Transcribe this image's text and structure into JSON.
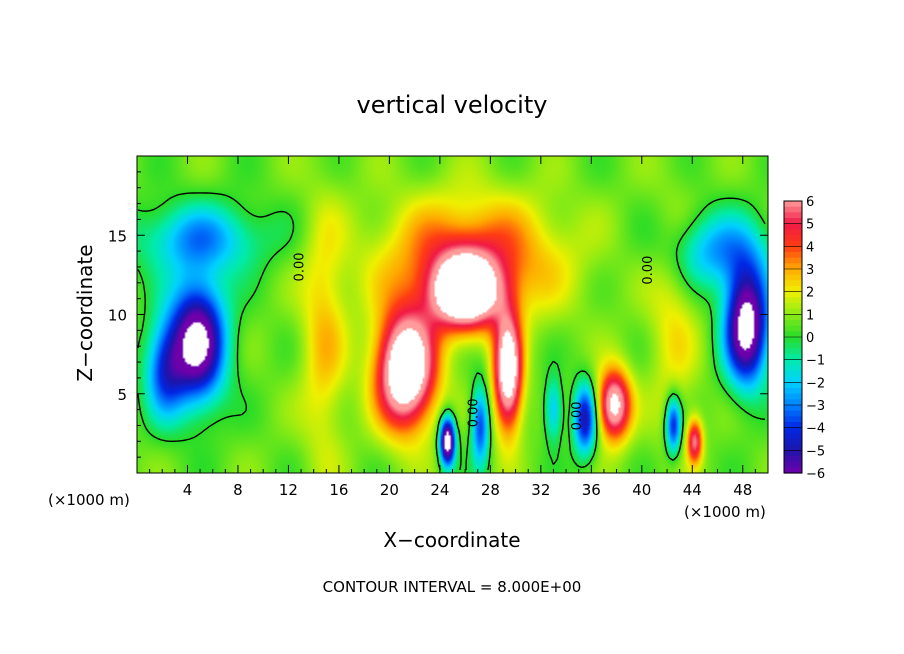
{
  "chart_data": {
    "type": "heatmap",
    "title": "vertical velocity",
    "xlabel": "X−coordinate",
    "ylabel": "Z−coordinate",
    "x_unit_label_left": "(×1000 m)",
    "x_unit_label_right": "(×1000 m)",
    "footer": "CONTOUR INTERVAL = 8.000E+00",
    "xlim": [
      0,
      50
    ],
    "ylim": [
      0,
      20
    ],
    "x_ticks": [
      4,
      8,
      12,
      16,
      20,
      24,
      28,
      32,
      36,
      40,
      44,
      48
    ],
    "y_ticks": [
      5,
      10,
      15
    ],
    "colorbar": {
      "min": -6,
      "max": 6,
      "ticks": [
        6,
        5,
        4,
        3,
        2,
        1,
        0,
        -1,
        -2,
        -3,
        -4,
        -5,
        -6
      ],
      "tick_labels": [
        "6",
        "5",
        "4",
        "3",
        "2",
        "1",
        "0",
        "−1",
        "−2",
        "−3",
        "−4",
        "−5",
        "−6"
      ]
    },
    "zero_contour_labels": [
      "0.00",
      "0.00",
      "0.00",
      "0.00"
    ],
    "features": [
      {
        "sign": "negative",
        "x": 4.8,
        "z": 8.3,
        "sx": 2.2,
        "sz": 3.8,
        "amp": -8.0
      },
      {
        "sign": "negative",
        "x": 2.2,
        "z": 6.5,
        "sx": 1.6,
        "sz": 3.0,
        "amp": -4.0
      },
      {
        "sign": "negative",
        "x": 5.0,
        "z": 14.8,
        "sx": 5.0,
        "sz": 2.2,
        "amp": -3.2
      },
      {
        "sign": "negative",
        "x": 48.3,
        "z": 9.3,
        "sx": 1.7,
        "sz": 3.6,
        "amp": -8.5
      },
      {
        "sign": "negative",
        "x": 46.0,
        "z": 14.0,
        "sx": 4.0,
        "sz": 2.4,
        "amp": -3.2
      },
      {
        "sign": "positive",
        "x": 21.3,
        "z": 6.5,
        "sx": 2.3,
        "sz": 3.6,
        "amp": 9.0
      },
      {
        "sign": "positive",
        "x": 26.0,
        "z": 11.4,
        "sx": 2.6,
        "sz": 2.2,
        "amp": 8.5
      },
      {
        "sign": "positive",
        "x": 29.4,
        "z": 6.3,
        "sx": 1.1,
        "sz": 3.6,
        "amp": 8.0
      },
      {
        "sign": "positive",
        "x": 26.5,
        "z": 13.5,
        "sx": 7.0,
        "sz": 3.8,
        "amp": 3.8
      },
      {
        "sign": "positive",
        "x": 37.8,
        "z": 4.3,
        "sx": 1.3,
        "sz": 2.2,
        "amp": 7.0
      },
      {
        "sign": "negative",
        "x": 24.6,
        "z": 2.0,
        "sx": 0.6,
        "sz": 1.5,
        "amp": -9.0
      },
      {
        "sign": "negative",
        "x": 27.2,
        "z": 3.0,
        "sx": 0.7,
        "sz": 2.5,
        "amp": -4.5
      },
      {
        "sign": "negative",
        "x": 35.5,
        "z": 3.4,
        "sx": 0.9,
        "sz": 2.2,
        "amp": -5.5
      },
      {
        "sign": "negative",
        "x": 33.0,
        "z": 4.0,
        "sx": 0.7,
        "sz": 2.0,
        "amp": -3.0
      },
      {
        "sign": "negative",
        "x": 42.5,
        "z": 3.0,
        "sx": 0.6,
        "sz": 1.8,
        "amp": -5.0
      },
      {
        "sign": "positive",
        "x": 44.2,
        "z": 2.0,
        "sx": 0.6,
        "sz": 1.4,
        "amp": 5.0
      },
      {
        "sign": "positive",
        "x": 14.8,
        "z": 8.5,
        "sx": 1.8,
        "sz": 8.0,
        "amp": 2.0
      },
      {
        "sign": "positive",
        "x": 42.5,
        "z": 9.5,
        "sx": 2.0,
        "sz": 7.0,
        "amp": 1.5
      }
    ],
    "colors": {
      "white_fill": "#ffffff",
      "frame": "#000000"
    }
  }
}
